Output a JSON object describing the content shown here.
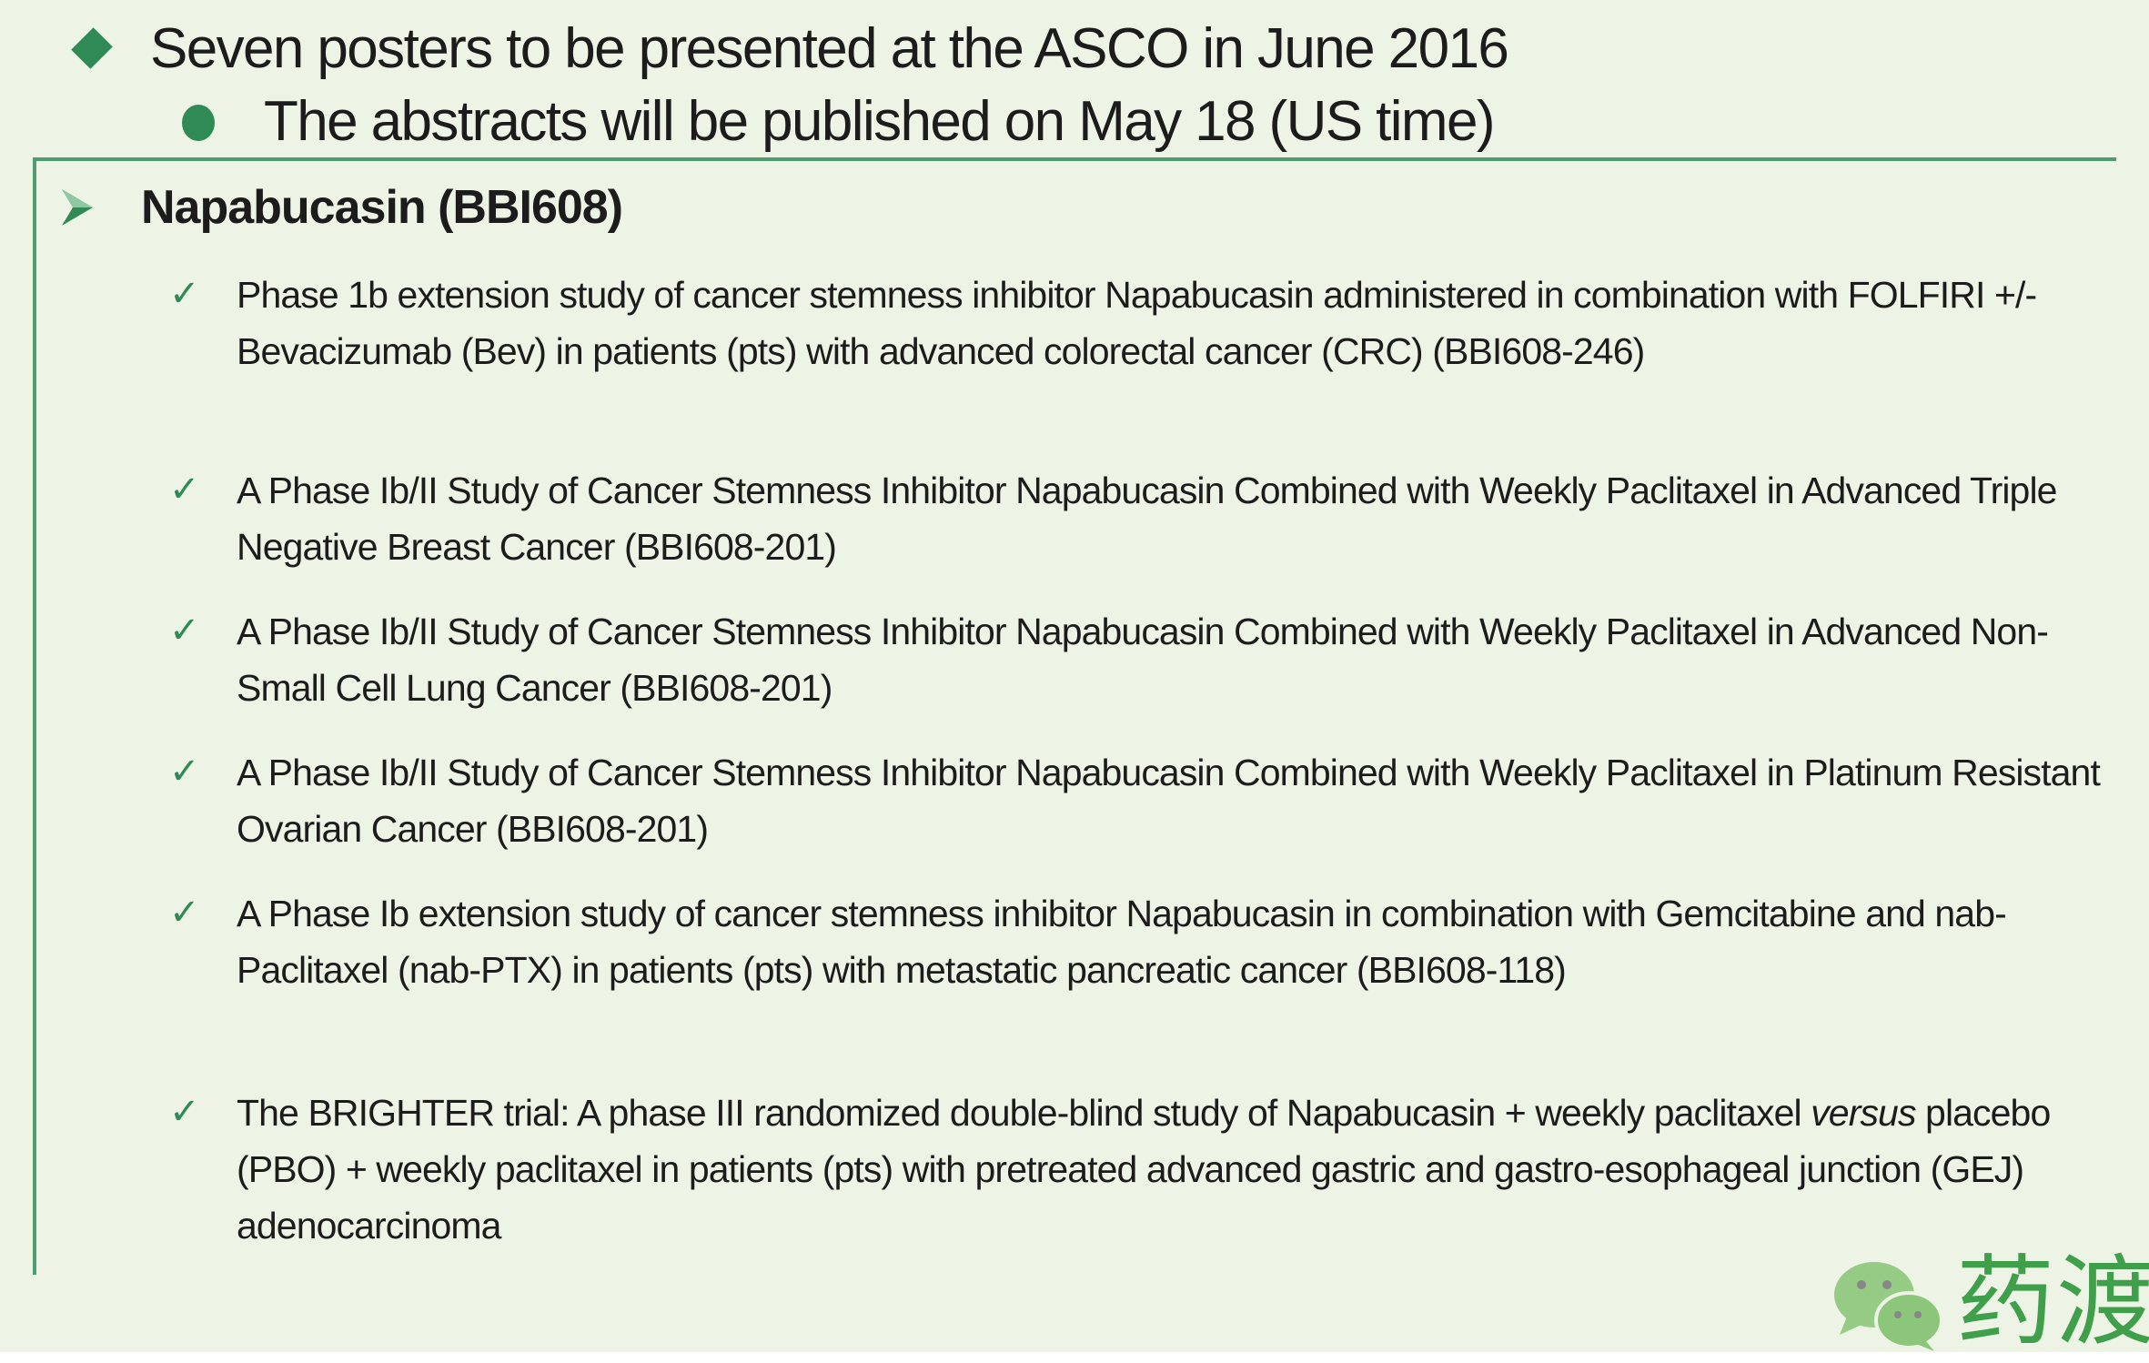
{
  "bullets": {
    "main": "Seven posters to be presented at the ASCO in June 2016",
    "sub": "The abstracts will be published on May 18 (US time)"
  },
  "section": {
    "heading": "Napabucasin (BBI608)",
    "items": [
      {
        "text": "Phase 1b extension study of cancer stemness inhibitor Napabucasin administered in combination with FOLFIRI +/- Bevacizumab (Bev) in patients (pts) with advanced colorectal cancer (CRC) (BBI608-246)"
      },
      {
        "text": "A Phase Ib/II Study of Cancer Stemness Inhibitor Napabucasin Combined with Weekly Paclitaxel in Advanced Triple Negative Breast Cancer (BBI608-201)"
      },
      {
        "text": "A Phase Ib/II Study of Cancer Stemness Inhibitor Napabucasin Combined with Weekly Paclitaxel in Advanced Non-Small Cell Lung Cancer (BBI608-201)"
      },
      {
        "text": "A Phase Ib/II Study of Cancer Stemness Inhibitor Napabucasin Combined with Weekly Paclitaxel in Platinum Resistant Ovarian Cancer (BBI608-201)"
      },
      {
        "text": "A Phase Ib extension study of cancer stemness inhibitor Napabucasin in combination with Gemcitabine and nab-Paclitaxel (nab-PTX) in patients (pts) with metastatic pancreatic cancer (BBI608-118)"
      },
      {
        "text_before": "The BRIGHTER trial: A phase III randomized double-blind study of Napabucasin  + weekly paclitaxel ",
        "text_italic": "versus",
        "text_after": " placebo (PBO) + weekly paclitaxel in patients (pts) with pretreated advanced gastric and gastro-esophageal junction (GEJ) adenocarcinoma"
      }
    ]
  },
  "watermark": {
    "text": "药渡",
    "icon": "wechat-icon"
  },
  "colors": {
    "accent": "#2f8a55",
    "background": "#eef4e5",
    "watermark": "#3f9f4a"
  }
}
